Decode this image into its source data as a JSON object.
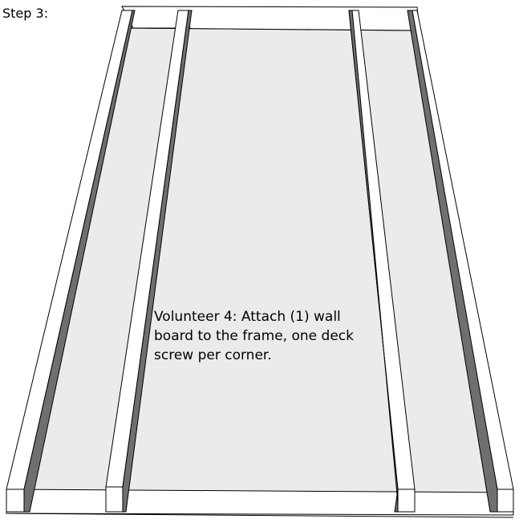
{
  "step": {
    "title": "Step 3:"
  },
  "instruction": {
    "lines": [
      "Volunteer 4: Attach (1) wall",
      "board to the frame, one deck",
      "screw per corner."
    ]
  },
  "colors": {
    "wall_board": "#ebebeb",
    "stud_top": "#ffffff",
    "stud_shadow": "#6f6f6f",
    "outline": "#000000"
  },
  "frame": {
    "stud_count": 4,
    "wall_board_count": 1
  }
}
